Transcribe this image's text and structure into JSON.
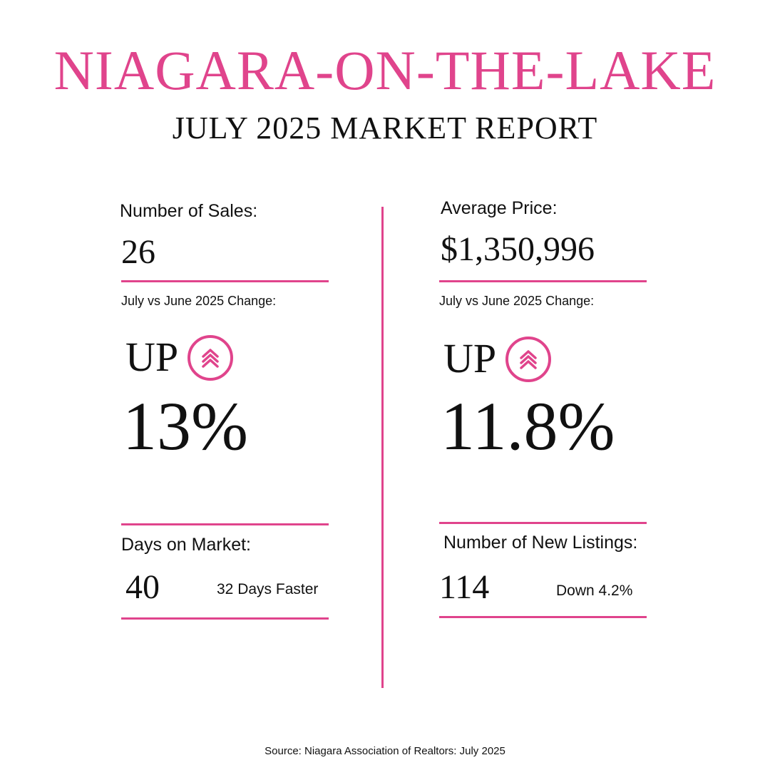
{
  "header": {
    "title": "NIAGARA-ON-THE-LAKE",
    "subtitle": "JULY 2025 MARKET REPORT"
  },
  "left": {
    "sales_label": "Number of Sales:",
    "sales_value": "26",
    "change_label": "July vs June 2025 Change:",
    "direction": "UP",
    "direction_icon": "double-chevron-up-icon",
    "change_value": "13%",
    "dom_label": "Days on Market:",
    "dom_value": "40",
    "dom_note": "32 Days Faster"
  },
  "right": {
    "price_label": "Average Price:",
    "price_value": "$1,350,996",
    "change_label": "July vs June 2025 Change:",
    "direction": "UP",
    "direction_icon": "double-chevron-up-icon",
    "change_value": "11.8%",
    "listings_label": "Number of New Listings:",
    "listings_value": "114",
    "listings_note": "Down 4.2%"
  },
  "footer": {
    "source": "Source: Niagara Association of Realtors: July 2025"
  },
  "colors": {
    "accent": "#e0448c",
    "text": "#111111",
    "background": "#ffffff"
  }
}
